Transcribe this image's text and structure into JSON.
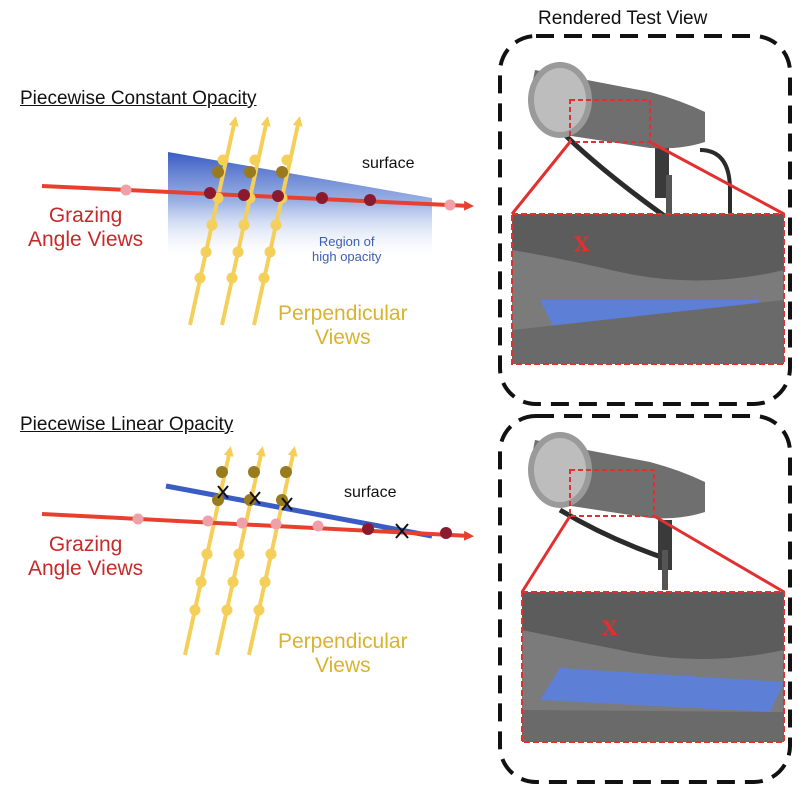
{
  "panel_top": {
    "title": "Piecewise Constant Opacity",
    "surface_label": "surface",
    "region_label_line1": "Region of",
    "region_label_line2": "high opacity",
    "grazing_line1": "Grazing",
    "grazing_line2": "Angle Views",
    "perp_line1": "Perpendicular",
    "perp_line2": "Views"
  },
  "panel_bottom": {
    "title": "Piecewise Linear Opacity",
    "surface_label": "surface",
    "grazing_line1": "Grazing",
    "grazing_line2": "Angle Views",
    "perp_line1": "Perpendicular",
    "perp_line2": "Views"
  },
  "right_column": {
    "title": "Rendered Test View",
    "marker_top": "X",
    "marker_bottom": "X"
  },
  "colors": {
    "grazing_ray": "#e8402f",
    "perpendicular_ray": "#f4cf5a",
    "surface_band": "#3a5cc4",
    "sample_dark": "#8b1a2e",
    "sample_light": "#f0a0a8",
    "sample_gold": "#9a7a1e",
    "crop_box": "#e03030"
  }
}
